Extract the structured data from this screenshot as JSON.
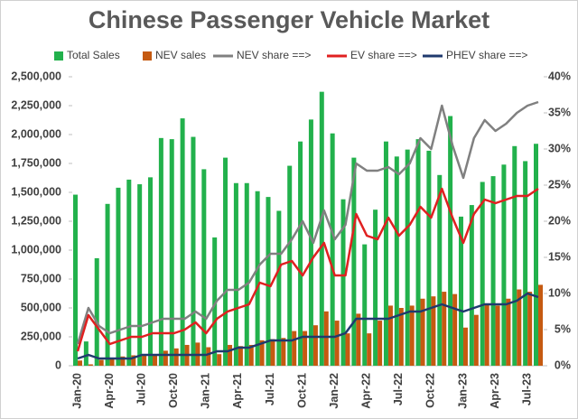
{
  "chart_data": {
    "type": "bar",
    "title": "Chinese Passenger Vehicle Market",
    "categories": [
      "Jan-20",
      null,
      null,
      "Apr-20",
      null,
      null,
      "Jul-20",
      null,
      null,
      "Oct-20",
      null,
      null,
      "Jan-21",
      null,
      null,
      "Apr-21",
      null,
      null,
      "Jul-21",
      null,
      null,
      "Oct-21",
      null,
      null,
      "Jan-22",
      null,
      null,
      "Apr-22",
      null,
      null,
      "Jul-22",
      null,
      null,
      "Oct-22",
      null,
      null,
      "Jan-23",
      null,
      null,
      "Apr-23",
      null,
      null,
      "Jul-23",
      null
    ],
    "series": [
      {
        "name": "Total Sales",
        "type": "bar",
        "color": "#22b14c",
        "values": [
          1480000,
          210000,
          930000,
          1400000,
          1540000,
          1610000,
          1570000,
          1630000,
          1970000,
          1960000,
          2140000,
          1980000,
          1700000,
          1110000,
          1800000,
          1580000,
          1580000,
          1510000,
          1460000,
          1340000,
          1730000,
          1940000,
          2130000,
          2370000,
          2010000,
          1440000,
          1800000,
          1050000,
          1350000,
          1940000,
          1810000,
          1870000,
          1960000,
          1860000,
          1650000,
          2160000,
          1290000,
          1390000,
          1590000,
          1640000,
          1740000,
          1900000,
          1770000,
          1920000
        ]
      },
      {
        "name": "NEV sales",
        "type": "bar",
        "color": "#c55a11",
        "values": [
          45000,
          12000,
          50000,
          70000,
          80000,
          90000,
          90000,
          100000,
          130000,
          150000,
          180000,
          200000,
          160000,
          100000,
          180000,
          170000,
          180000,
          220000,
          230000,
          240000,
          300000,
          300000,
          350000,
          470000,
          390000,
          280000,
          450000,
          280000,
          390000,
          520000,
          500000,
          520000,
          580000,
          600000,
          640000,
          620000,
          330000,
          440000,
          530000,
          520000,
          580000,
          660000,
          640000,
          700000
        ]
      },
      {
        "name": "NEV share ==>",
        "type": "line",
        "axis": "y2",
        "color": "#808080",
        "values": [
          3,
          8,
          5.5,
          4.5,
          5,
          5.5,
          5.5,
          6,
          6.5,
          6.5,
          6.5,
          7.5,
          6.5,
          9,
          10.5,
          10.5,
          11.5,
          14,
          15.5,
          15.5,
          17.5,
          20,
          17,
          21.5,
          17.5,
          19.5,
          28,
          27,
          27,
          27.5,
          26.5,
          28,
          31.5,
          30,
          36,
          30.5,
          26,
          31.5,
          34,
          32.5,
          33.5,
          35,
          36,
          36.5
        ]
      },
      {
        "name": "EV share ==>",
        "type": "line",
        "axis": "y2",
        "color": "#e02020",
        "values": [
          2,
          7,
          5,
          3,
          3.5,
          4,
          4,
          4.5,
          4.5,
          4.5,
          5,
          6,
          4.5,
          6.5,
          7.5,
          8,
          8.5,
          11.5,
          11,
          14,
          14.5,
          12.5,
          15,
          17,
          12.5,
          12.5,
          21,
          18,
          17.5,
          20.5,
          18,
          19.5,
          22,
          20.5,
          24.5,
          20.5,
          17,
          21,
          23,
          22.5,
          23,
          23.5,
          23.5,
          24.5
        ]
      },
      {
        "name": "PHEV share ==>",
        "type": "line",
        "axis": "y2",
        "color": "#1f3a6e",
        "values": [
          1,
          1.5,
          1,
          1,
          1,
          1,
          1.5,
          1.5,
          1.5,
          1.5,
          1.5,
          1.5,
          1.5,
          2,
          2,
          2.5,
          2.5,
          3,
          3.5,
          3.5,
          3.5,
          4,
          4,
          4,
          4,
          4.5,
          6.5,
          6.5,
          6.5,
          6.5,
          7,
          7.5,
          7.5,
          8,
          8.5,
          8,
          7.5,
          8,
          8.5,
          8.5,
          8.5,
          9,
          10,
          9.5
        ]
      }
    ],
    "ylim": [
      0,
      2500000
    ],
    "yticks": [
      0,
      {
        "value": 250000,
        "label": "250,000"
      },
      {
        "value": 500000,
        "label": "500,000"
      },
      {
        "value": 750000,
        "label": "750,000"
      },
      {
        "value": 1000000,
        "label": "1,000,000"
      },
      {
        "value": 1250000,
        "label": "1,250,000"
      },
      {
        "value": 1500000,
        "label": "1,500,000"
      },
      {
        "value": 1750000,
        "label": "1,750,000"
      },
      {
        "value": 2000000,
        "label": "2,000,000"
      },
      {
        "value": 2250000,
        "label": "2,250,000"
      },
      {
        "value": 2500000,
        "label": "2,500,000"
      }
    ],
    "y2lim": [
      0,
      40
    ],
    "y2ticks": [
      {
        "value": 0,
        "label": "0%"
      },
      {
        "value": 5,
        "label": "5%"
      },
      {
        "value": 10,
        "label": "10%"
      },
      {
        "value": 15,
        "label": "15%"
      },
      {
        "value": 20,
        "label": "20%"
      },
      {
        "value": 25,
        "label": "25%"
      },
      {
        "value": 30,
        "label": "30%"
      },
      {
        "value": 35,
        "label": "35%"
      },
      {
        "value": 40,
        "label": "40%"
      }
    ],
    "legend": "top",
    "grid": false
  }
}
